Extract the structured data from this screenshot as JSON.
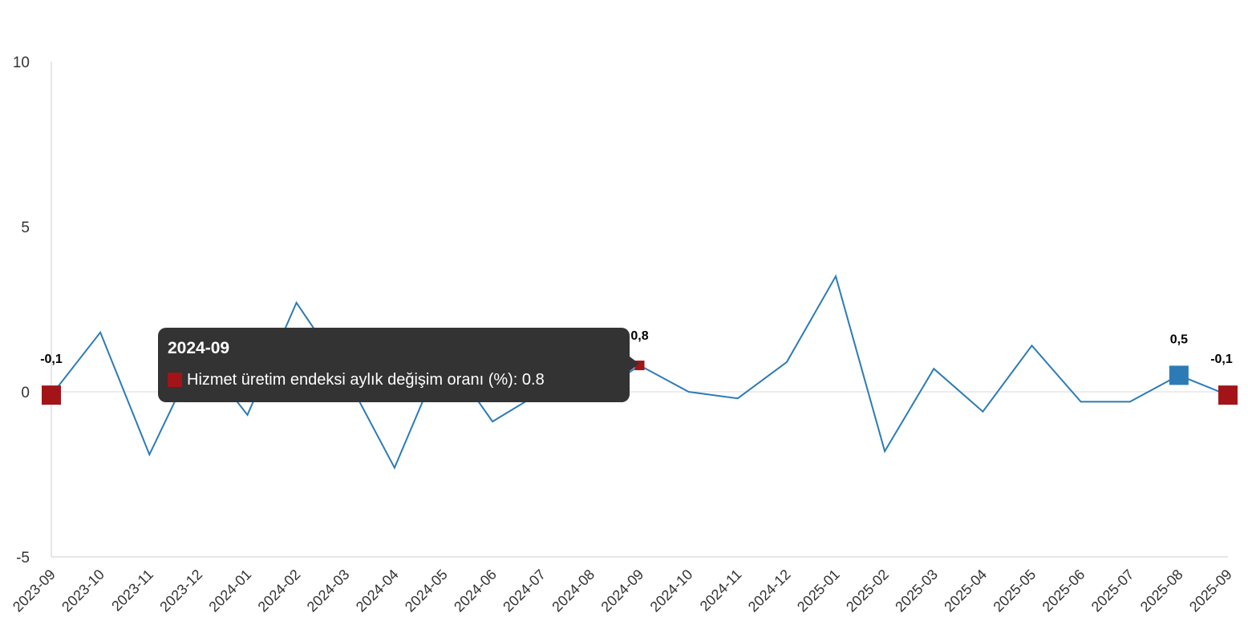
{
  "colors": {
    "line": "#2c7bb6",
    "marker_end": "#a31419",
    "marker_highlight": "#2c7bb6",
    "tooltip_bg": "#333333",
    "axis": "#cccccc"
  },
  "chart_data": {
    "type": "line",
    "title": "",
    "xlabel": "",
    "ylabel": "",
    "ylim": [
      -5,
      10
    ],
    "yticks": [
      "10",
      "5",
      "0",
      "-5"
    ],
    "categories": [
      "2023-09",
      "2023-10",
      "2023-11",
      "2023-12",
      "2024-01",
      "2024-02",
      "2024-03",
      "2024-04",
      "2024-05",
      "2024-06",
      "2024-07",
      "2024-08",
      "2024-09",
      "2024-10",
      "2024-11",
      "2024-12",
      "2025-01",
      "2025-02",
      "2025-03",
      "2025-04",
      "2025-05",
      "2025-06",
      "2025-07",
      "2025-08",
      "2025-09"
    ],
    "series": [
      {
        "name": "Hizmet üretim endeksi aylık değişim oranı (%)",
        "values": [
          -0.1,
          1.8,
          -1.9,
          1.2,
          -0.7,
          2.7,
          0.5,
          -2.3,
          1.2,
          -0.9,
          0.0,
          -0.2,
          0.8,
          0.0,
          -0.2,
          0.9,
          3.5,
          -1.8,
          0.7,
          -0.6,
          1.4,
          -0.3,
          -0.3,
          0.5,
          -0.1
        ]
      }
    ],
    "data_labels": [
      {
        "index": 0,
        "text": "-0,1"
      },
      {
        "index": 12,
        "text": "0,8"
      },
      {
        "index": 23,
        "text": "0,5"
      },
      {
        "index": 24,
        "text": "-0,1"
      }
    ],
    "grid": false
  },
  "tooltip": {
    "title": "2024-09",
    "text": "Hizmet üretim endeksi aylık değişim oranı (%): 0.8"
  }
}
